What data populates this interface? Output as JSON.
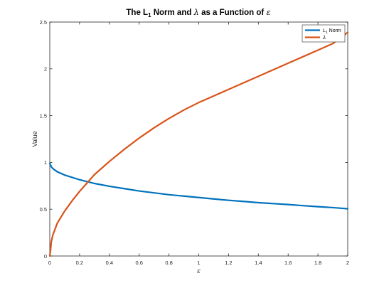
{
  "chart_data": {
    "type": "line",
    "title": {
      "prefix": "The L",
      "sub": "1",
      "mid": " Norm and ",
      "lambda": "λ",
      "suffix": " as a Function of ",
      "epsilon": "ε"
    },
    "xlabel": "ε",
    "ylabel": "Value",
    "xlim": [
      0,
      2
    ],
    "ylim": [
      0,
      2.5
    ],
    "xticks": [
      0,
      0.2,
      0.4,
      0.6,
      0.8,
      1,
      1.2,
      1.4,
      1.6,
      1.8,
      2
    ],
    "xtick_labels": [
      "0",
      "0.2",
      "0.4",
      "0.6",
      "0.8",
      "1",
      "1.2",
      "1.4",
      "1.6",
      "1.8",
      "2"
    ],
    "yticks": [
      0,
      0.5,
      1,
      1.5,
      2,
      2.5
    ],
    "ytick_labels": [
      "0",
      "0.5",
      "1",
      "1.5",
      "2",
      "2.5"
    ],
    "grid": false,
    "legend_position": "top-right",
    "series": [
      {
        "name": "L1 Norm",
        "legend_main": "L",
        "legend_sub": "1",
        "legend_rest": " Norm",
        "color": "#0072BD",
        "x": [
          0,
          0.01,
          0.02,
          0.05,
          0.1,
          0.2,
          0.3,
          0.4,
          0.5,
          0.6,
          0.7,
          0.8,
          0.9,
          1.0,
          1.1,
          1.2,
          1.3,
          1.4,
          1.5,
          1.6,
          1.7,
          1.8,
          1.9,
          2.0
        ],
        "y": [
          0.99,
          0.955,
          0.935,
          0.9,
          0.865,
          0.815,
          0.775,
          0.745,
          0.72,
          0.695,
          0.675,
          0.655,
          0.64,
          0.625,
          0.61,
          0.595,
          0.583,
          0.57,
          0.56,
          0.55,
          0.538,
          0.527,
          0.517,
          0.505
        ]
      },
      {
        "name": "λ",
        "legend_main": "λ",
        "legend_sub": "",
        "legend_rest": "",
        "color": "#D95319",
        "x": [
          0,
          0.005,
          0.01,
          0.02,
          0.05,
          0.1,
          0.15,
          0.2,
          0.25,
          0.3,
          0.4,
          0.5,
          0.6,
          0.7,
          0.8,
          0.9,
          1.0,
          1.1,
          1.2,
          1.3,
          1.4,
          1.5,
          1.6,
          1.7,
          1.8,
          1.9,
          2.0
        ],
        "y": [
          0.0,
          0.06,
          0.15,
          0.22,
          0.35,
          0.48,
          0.59,
          0.69,
          0.78,
          0.87,
          1.01,
          1.14,
          1.26,
          1.37,
          1.47,
          1.56,
          1.64,
          1.71,
          1.78,
          1.85,
          1.92,
          1.99,
          2.06,
          2.13,
          2.2,
          2.27,
          2.39
        ]
      }
    ]
  }
}
